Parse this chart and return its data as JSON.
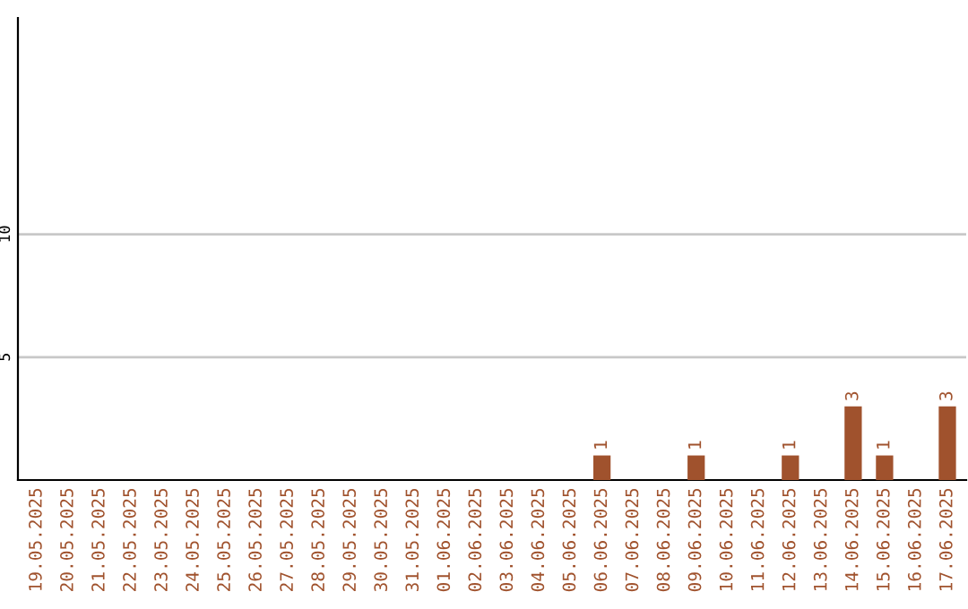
{
  "chart_data": {
    "type": "bar",
    "categories": [
      "19.05.2025",
      "20.05.2025",
      "21.05.2025",
      "22.05.2025",
      "23.05.2025",
      "24.05.2025",
      "25.05.2025",
      "26.05.2025",
      "27.05.2025",
      "28.05.2025",
      "29.05.2025",
      "30.05.2025",
      "31.05.2025",
      "01.06.2025",
      "02.06.2025",
      "03.06.2025",
      "04.06.2025",
      "05.06.2025",
      "06.06.2025",
      "07.06.2025",
      "08.06.2025",
      "09.06.2025",
      "10.06.2025",
      "11.06.2025",
      "12.06.2025",
      "13.06.2025",
      "14.06.2025",
      "15.06.2025",
      "16.06.2025",
      "17.06.2025"
    ],
    "values": [
      0,
      0,
      0,
      0,
      0,
      0,
      0,
      0,
      0,
      0,
      0,
      0,
      0,
      0,
      0,
      0,
      0,
      0,
      1,
      0,
      0,
      1,
      0,
      0,
      1,
      0,
      3,
      1,
      0,
      3
    ],
    "value_labels": [
      null,
      null,
      null,
      null,
      null,
      null,
      null,
      null,
      null,
      null,
      null,
      null,
      null,
      null,
      null,
      null,
      null,
      null,
      "1",
      null,
      null,
      "1",
      null,
      null,
      "1",
      null,
      "3",
      "1",
      null,
      "3"
    ],
    "color": "#a0522d",
    "ylim": [
      0,
      18.8
    ],
    "yticks": [
      5,
      10
    ],
    "grid": "y"
  }
}
